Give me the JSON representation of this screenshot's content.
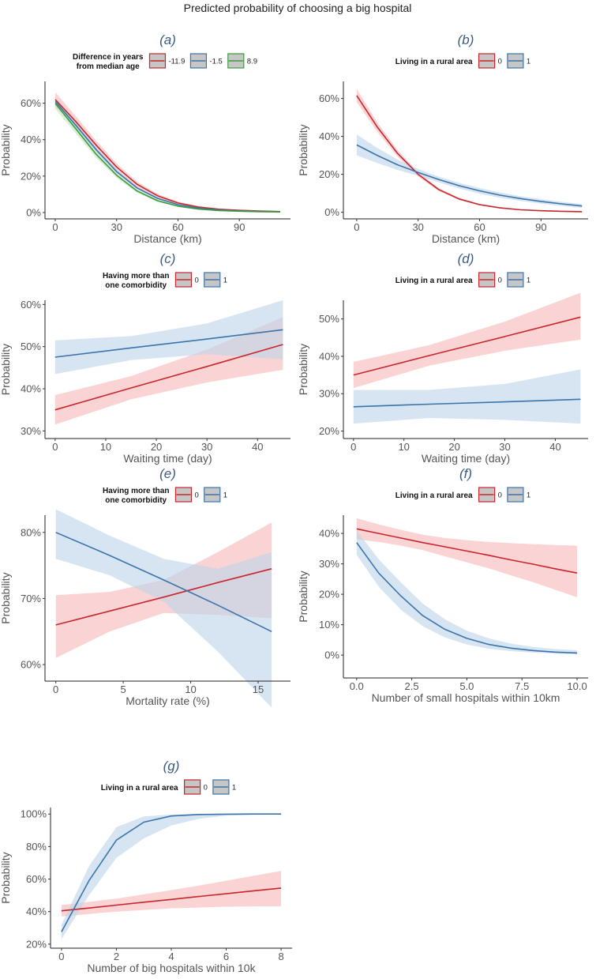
{
  "title": "Predicted probability of choosing a big hospital",
  "colors": {
    "red": "#c8262c",
    "red_band": "#f6b8b8",
    "blue": "#3a74ab",
    "blue_band": "#bcd3ea",
    "green": "#3c9a3c",
    "green_band": "#bfe3bf",
    "legend_key_fill": "#c6c6c6"
  },
  "chart_data": [
    {
      "panel": "(a)",
      "type": "line",
      "legend_title": [
        "Difference in years",
        "from median age"
      ],
      "xlabel": "Distance (km)",
      "ylabel": "Probability",
      "xticks": [
        0,
        30,
        60,
        90
      ],
      "xtick_labels": [
        "0",
        "30",
        "60",
        "90"
      ],
      "yticks": [
        0,
        20,
        40,
        60
      ],
      "ytick_labels": [
        "0%",
        "20%",
        "40%",
        "60%"
      ],
      "xlim": [
        -5,
        115
      ],
      "ylim": [
        -3.5,
        72
      ],
      "x": [
        0,
        10,
        20,
        30,
        40,
        50,
        60,
        70,
        80,
        90,
        100,
        110
      ],
      "series": [
        {
          "name": "-11.9",
          "color": "red",
          "y": [
            62,
            50,
            37,
            25,
            15.5,
            9.2,
            5.2,
            3,
            1.8,
            1.2,
            0.8,
            0.5
          ],
          "lo": [
            58,
            47,
            34.5,
            23,
            14,
            8.2,
            4.5,
            2.5,
            1.4,
            0.9,
            0.6,
            0.3
          ],
          "hi": [
            66,
            53,
            39.5,
            27,
            17,
            10.2,
            6,
            3.5,
            2.2,
            1.5,
            1,
            0.7
          ]
        },
        {
          "name": "-1.5",
          "color": "blue",
          "y": [
            61,
            48,
            34.5,
            22.5,
            13.5,
            7.8,
            4.3,
            2.4,
            1.4,
            0.9,
            0.6,
            0.4
          ],
          "lo": [
            59,
            46.5,
            33.2,
            21.5,
            12.8,
            7.3,
            4,
            2.2,
            1.2,
            0.7,
            0.5,
            0.3
          ],
          "hi": [
            63,
            49.5,
            35.8,
            23.5,
            14.2,
            8.3,
            4.6,
            2.6,
            1.6,
            1.1,
            0.7,
            0.5
          ]
        },
        {
          "name": "8.9",
          "color": "green",
          "y": [
            60,
            46,
            32,
            20.5,
            11.8,
            6.5,
            3.5,
            1.9,
            1.1,
            0.7,
            0.4,
            0.3
          ],
          "lo": [
            57,
            43.5,
            30,
            19,
            10.8,
            5.8,
            3,
            1.6,
            0.9,
            0.5,
            0.3,
            0.2
          ],
          "hi": [
            63,
            48.5,
            34,
            22,
            12.8,
            7.2,
            4,
            2.2,
            1.3,
            0.9,
            0.6,
            0.4
          ]
        }
      ]
    },
    {
      "panel": "(b)",
      "type": "line",
      "legend_title": [
        "Living in a rural area"
      ],
      "xlabel": "Distance (km)",
      "ylabel": "Probability",
      "xticks": [
        0,
        30,
        60,
        90
      ],
      "xtick_labels": [
        "0",
        "30",
        "60",
        "90"
      ],
      "yticks": [
        0,
        20,
        40,
        60
      ],
      "ytick_labels": [
        "0%",
        "20%",
        "40%",
        "60%"
      ],
      "xlim": [
        -6.5,
        113
      ],
      "ylim": [
        -3.5,
        69
      ],
      "x": [
        0,
        10,
        20,
        30,
        40,
        50,
        60,
        70,
        80,
        90,
        100,
        110
      ],
      "series": [
        {
          "name": "0",
          "color": "red",
          "y": [
            61.5,
            45,
            31,
            20,
            12,
            7,
            4,
            2.3,
            1.3,
            0.8,
            0.5,
            0.3
          ],
          "lo": [
            58,
            42.5,
            29.2,
            18.8,
            11.2,
            6.4,
            3.6,
            2,
            1.1,
            0.6,
            0.4,
            0.2
          ],
          "hi": [
            65,
            47.5,
            32.8,
            21.2,
            12.8,
            7.6,
            4.4,
            2.6,
            1.5,
            1,
            0.7,
            0.5
          ]
        },
        {
          "name": "1",
          "color": "blue",
          "y": [
            35.5,
            30,
            25,
            21,
            17.3,
            14,
            11.3,
            9,
            7.2,
            5.7,
            4.4,
            3.3
          ],
          "lo": [
            30,
            26,
            22.3,
            19.2,
            15.8,
            12.5,
            9.8,
            7.6,
            5.9,
            4.5,
            3.3,
            2.3
          ],
          "hi": [
            41,
            34,
            27.7,
            22.8,
            18.8,
            15.5,
            12.8,
            10.4,
            8.5,
            6.9,
            5.5,
            4.3
          ]
        }
      ]
    },
    {
      "panel": "(c)",
      "type": "line",
      "legend_title": [
        "Having more than",
        "one comorbidity"
      ],
      "xlabel": "Waiting time (day)",
      "ylabel": "Probability",
      "xticks": [
        0,
        10,
        20,
        30,
        40
      ],
      "xtick_labels": [
        "0",
        "10",
        "20",
        "30",
        "40"
      ],
      "yticks": [
        30,
        40,
        50,
        60
      ],
      "ytick_labels": [
        "30%",
        "40%",
        "50%",
        "60%"
      ],
      "xlim": [
        -2,
        46.5
      ],
      "ylim": [
        28.2,
        61
      ],
      "x": [
        0,
        15,
        30,
        45
      ],
      "series": [
        {
          "name": "0",
          "color": "red",
          "y": [
            35,
            40.2,
            45.3,
            50.5
          ],
          "lo": [
            31.5,
            37.5,
            41.5,
            44.5
          ],
          "hi": [
            38.5,
            43,
            49.3,
            57
          ]
        },
        {
          "name": "1",
          "color": "blue",
          "y": [
            47.5,
            49.7,
            51.8,
            54
          ],
          "lo": [
            43.5,
            46.8,
            48.2,
            47
          ],
          "hi": [
            51.5,
            52.5,
            55.5,
            61
          ]
        }
      ]
    },
    {
      "panel": "(d)",
      "type": "line",
      "legend_title": [
        "Living in a rural area"
      ],
      "xlabel": "Waiting time (day)",
      "ylabel": "Probability",
      "xticks": [
        0,
        10,
        20,
        30,
        40
      ],
      "xtick_labels": [
        "0",
        "10",
        "20",
        "30",
        "40"
      ],
      "yticks": [
        20,
        30,
        40,
        50
      ],
      "ytick_labels": [
        "20%",
        "30%",
        "40%",
        "50%"
      ],
      "xlim": [
        -2,
        46.5
      ],
      "ylim": [
        18,
        55
      ],
      "x": [
        0,
        15,
        30,
        45
      ],
      "series": [
        {
          "name": "0",
          "color": "red",
          "y": [
            35,
            40.2,
            45.3,
            50.5
          ],
          "lo": [
            31.5,
            37.5,
            41.5,
            44.5
          ],
          "hi": [
            38.5,
            43,
            49.3,
            57
          ]
        },
        {
          "name": "1",
          "color": "blue",
          "y": [
            26.5,
            27.2,
            27.8,
            28.5
          ],
          "lo": [
            22,
            23.5,
            23,
            22
          ],
          "hi": [
            31,
            31,
            32.6,
            36.5
          ]
        }
      ]
    },
    {
      "panel": "(e)",
      "type": "line",
      "legend_title": [
        "Having more than",
        "one comorbidity"
      ],
      "xlabel": "Mortality rate (%)",
      "ylabel": "Probability",
      "xticks": [
        0,
        5,
        10,
        15
      ],
      "xtick_labels": [
        "0",
        "5",
        "10",
        "15"
      ],
      "yticks": [
        60,
        70,
        80
      ],
      "ytick_labels": [
        "60%",
        "70%",
        "80%"
      ],
      "xlim": [
        -0.8,
        17.4
      ],
      "ylim": [
        57.5,
        82.6
      ],
      "x": [
        0,
        4,
        8,
        12,
        16
      ],
      "series": [
        {
          "name": "0",
          "color": "red",
          "y": [
            66,
            68.1,
            70.2,
            72.4,
            74.5
          ],
          "lo": [
            61,
            65,
            67.8,
            67.5,
            67
          ],
          "hi": [
            70.5,
            71,
            72.8,
            77,
            81.5
          ]
        },
        {
          "name": "1",
          "color": "blue",
          "y": [
            80,
            76.5,
            72.8,
            69,
            65
          ],
          "lo": [
            76,
            73.5,
            69.5,
            62,
            53.5
          ],
          "hi": [
            83.5,
            79.5,
            76,
            74.5,
            77
          ]
        }
      ]
    },
    {
      "panel": "(f)",
      "type": "line",
      "legend_title": [
        "Living in a rural area"
      ],
      "xlabel": "Number of small hospitals within 10km",
      "ylabel": "Probability",
      "xticks": [
        0,
        2.5,
        5,
        7.5,
        10
      ],
      "xtick_labels": [
        "0.0",
        "2.5",
        "5.0",
        "7.5",
        "10.0"
      ],
      "yticks": [
        0,
        10,
        20,
        30,
        40
      ],
      "ytick_labels": [
        "0%",
        "10%",
        "20%",
        "30%",
        "40%"
      ],
      "xlim": [
        -0.6,
        10.5
      ],
      "ylim": [
        -7.5,
        46
      ],
      "x": [
        0,
        1,
        2,
        3,
        4,
        5,
        6,
        7,
        8,
        9,
        10
      ],
      "series": [
        {
          "name": "0",
          "color": "red",
          "y": [
            41.5,
            40,
            38.5,
            37,
            35.6,
            34.2,
            32.8,
            31.3,
            29.9,
            28.4,
            27
          ],
          "lo": [
            38,
            37.2,
            36,
            34.5,
            32.5,
            30.5,
            28.5,
            26.2,
            24,
            21.5,
            19
          ],
          "hi": [
            45,
            43,
            41.2,
            39.6,
            38.5,
            37.8,
            37.2,
            36.8,
            36.5,
            36.2,
            36
          ]
        },
        {
          "name": "1",
          "color": "blue",
          "y": [
            37,
            27,
            19.5,
            13,
            8.5,
            5.5,
            3.5,
            2.3,
            1.5,
            1,
            0.7
          ],
          "lo": [
            33,
            22.5,
            15,
            9.5,
            5.8,
            3.5,
            2.1,
            1.3,
            0.8,
            0.5,
            0.3
          ],
          "hi": [
            41,
            31.5,
            24,
            17,
            11.8,
            8,
            5.5,
            3.8,
            2.7,
            2,
            1.6
          ]
        }
      ]
    },
    {
      "panel": "(g)",
      "type": "line",
      "legend_title": [
        "Living in a rural area"
      ],
      "xlabel": "Number of big hospitals within 10k",
      "ylabel": "Probability",
      "xticks": [
        0,
        2,
        4,
        6,
        8
      ],
      "xtick_labels": [
        "0",
        "2",
        "4",
        "6",
        "8"
      ],
      "yticks": [
        20,
        40,
        60,
        80,
        100
      ],
      "ytick_labels": [
        "20%",
        "40%",
        "60%",
        "80%",
        "100%"
      ],
      "xlim": [
        -0.4,
        8.4
      ],
      "ylim": [
        17.5,
        104
      ],
      "x": [
        0,
        1,
        2,
        3,
        4,
        5,
        6,
        7,
        8
      ],
      "series": [
        {
          "name": "0",
          "color": "red",
          "y": [
            40.5,
            42.2,
            44,
            45.8,
            47.5,
            49.3,
            51,
            52.8,
            54.5
          ],
          "lo": [
            37,
            38.5,
            40,
            41,
            42,
            42.5,
            43,
            43.2,
            43.3
          ],
          "hi": [
            44,
            46,
            48,
            50.6,
            53.2,
            56,
            59,
            62,
            65
          ]
        },
        {
          "name": "1",
          "color": "blue",
          "y": [
            27.5,
            59,
            84,
            95,
            98.8,
            99.7,
            99.9,
            100,
            100
          ],
          "lo": [
            23,
            50,
            73,
            85,
            93,
            97,
            99,
            99.5,
            99.8
          ],
          "hi": [
            32,
            68,
            92,
            98.5,
            99.7,
            100,
            100,
            100,
            100
          ]
        }
      ]
    }
  ]
}
